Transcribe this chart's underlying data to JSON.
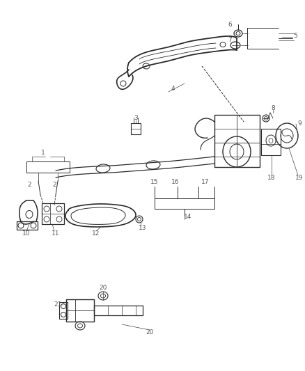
{
  "bg_color": "#ffffff",
  "fig_width": 4.38,
  "fig_height": 5.33,
  "dpi": 100,
  "lc": "#2a2a2a",
  "label_color": "#555555",
  "label_fs": 6.5,
  "leader_color": "#444444"
}
